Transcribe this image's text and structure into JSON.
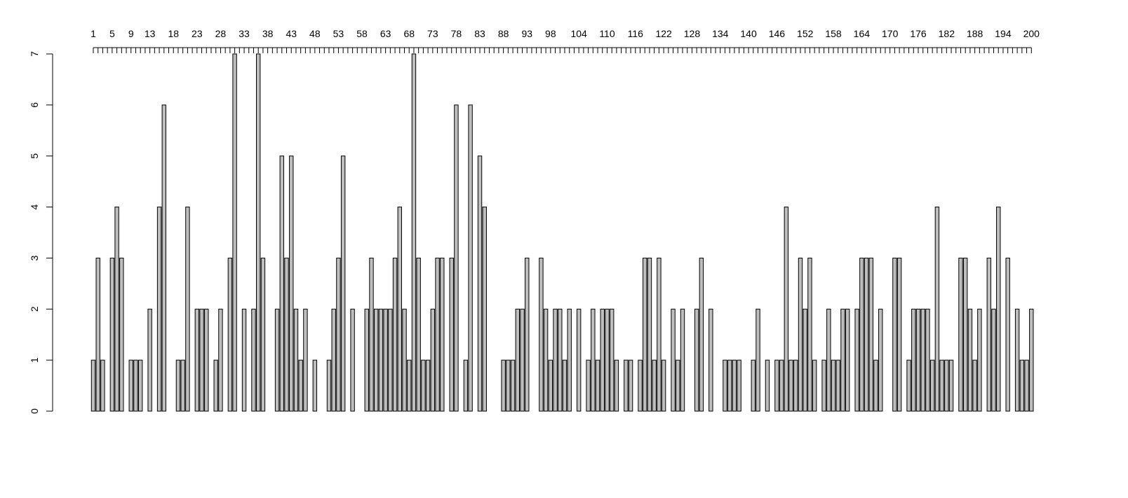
{
  "chart_data": {
    "type": "bar",
    "categories": [
      "1",
      null,
      null,
      null,
      "5",
      null,
      null,
      null,
      "9",
      null,
      null,
      null,
      "13",
      null,
      null,
      null,
      null,
      "18",
      null,
      null,
      null,
      null,
      "23",
      null,
      null,
      null,
      null,
      "28",
      null,
      null,
      null,
      null,
      "33",
      null,
      null,
      null,
      null,
      "38",
      null,
      null,
      null,
      null,
      "43",
      null,
      null,
      null,
      null,
      "48",
      null,
      null,
      null,
      null,
      "53",
      null,
      null,
      null,
      null,
      "58",
      null,
      null,
      null,
      null,
      "63",
      null,
      null,
      null,
      null,
      "68",
      null,
      null,
      null,
      null,
      "73",
      null,
      null,
      null,
      null,
      "78",
      null,
      null,
      null,
      null,
      "83",
      null,
      null,
      null,
      null,
      "88",
      null,
      null,
      null,
      null,
      "93",
      null,
      null,
      null,
      null,
      "98",
      null,
      null,
      null,
      null,
      null,
      "104",
      null,
      null,
      null,
      null,
      null,
      "110",
      null,
      null,
      null,
      null,
      null,
      "116",
      null,
      null,
      null,
      null,
      null,
      "122",
      null,
      null,
      null,
      null,
      null,
      "128",
      null,
      null,
      null,
      null,
      null,
      "134",
      null,
      null,
      null,
      null,
      null,
      "140",
      null,
      null,
      null,
      null,
      null,
      "146",
      null,
      null,
      null,
      null,
      null,
      "152",
      null,
      null,
      null,
      null,
      null,
      "158",
      null,
      null,
      null,
      null,
      null,
      "164",
      null,
      null,
      null,
      null,
      null,
      "170",
      null,
      null,
      null,
      null,
      null,
      "176",
      null,
      null,
      null,
      null,
      null,
      "182",
      null,
      null,
      null,
      null,
      null,
      "188",
      null,
      null,
      null,
      null,
      null,
      "194",
      null,
      null,
      null,
      null,
      null,
      "200"
    ],
    "values": [
      1,
      3,
      1,
      0,
      3,
      4,
      3,
      0,
      1,
      1,
      1,
      0,
      2,
      0,
      4,
      6,
      0,
      0,
      1,
      1,
      4,
      0,
      2,
      2,
      2,
      0,
      1,
      2,
      0,
      3,
      7,
      0,
      2,
      0,
      2,
      7,
      3,
      0,
      0,
      2,
      5,
      3,
      5,
      2,
      1,
      2,
      0,
      1,
      0,
      0,
      1,
      2,
      3,
      5,
      0,
      2,
      0,
      0,
      2,
      3,
      2,
      2,
      2,
      2,
      3,
      4,
      2,
      1,
      7,
      3,
      1,
      1,
      2,
      3,
      3,
      0,
      3,
      6,
      0,
      1,
      6,
      0,
      5,
      4,
      0,
      0,
      0,
      1,
      1,
      1,
      2,
      2,
      3,
      0,
      0,
      3,
      2,
      1,
      2,
      2,
      1,
      2,
      0,
      2,
      0,
      1,
      2,
      1,
      2,
      2,
      2,
      1,
      0,
      1,
      1,
      0,
      1,
      3,
      3,
      1,
      3,
      1,
      0,
      2,
      1,
      2,
      0,
      0,
      2,
      3,
      0,
      2,
      0,
      0,
      1,
      1,
      1,
      1,
      0,
      0,
      1,
      2,
      0,
      1,
      0,
      1,
      1,
      4,
      1,
      1,
      3,
      2,
      3,
      1,
      0,
      1,
      2,
      1,
      1,
      2,
      2,
      0,
      2,
      3,
      3,
      3,
      1,
      2,
      0,
      0,
      3,
      3,
      0,
      1,
      2,
      2,
      2,
      2,
      1,
      4,
      1,
      1,
      1,
      0,
      3,
      3,
      2,
      1,
      2,
      0,
      3,
      2,
      4,
      0,
      3,
      0,
      2,
      1,
      1,
      2
    ],
    "color": "#bebebe",
    "ylim": [
      0,
      7
    ],
    "yticks": [
      0,
      1,
      2,
      3,
      4,
      5,
      6,
      7
    ],
    "x_axis_side": "top"
  }
}
